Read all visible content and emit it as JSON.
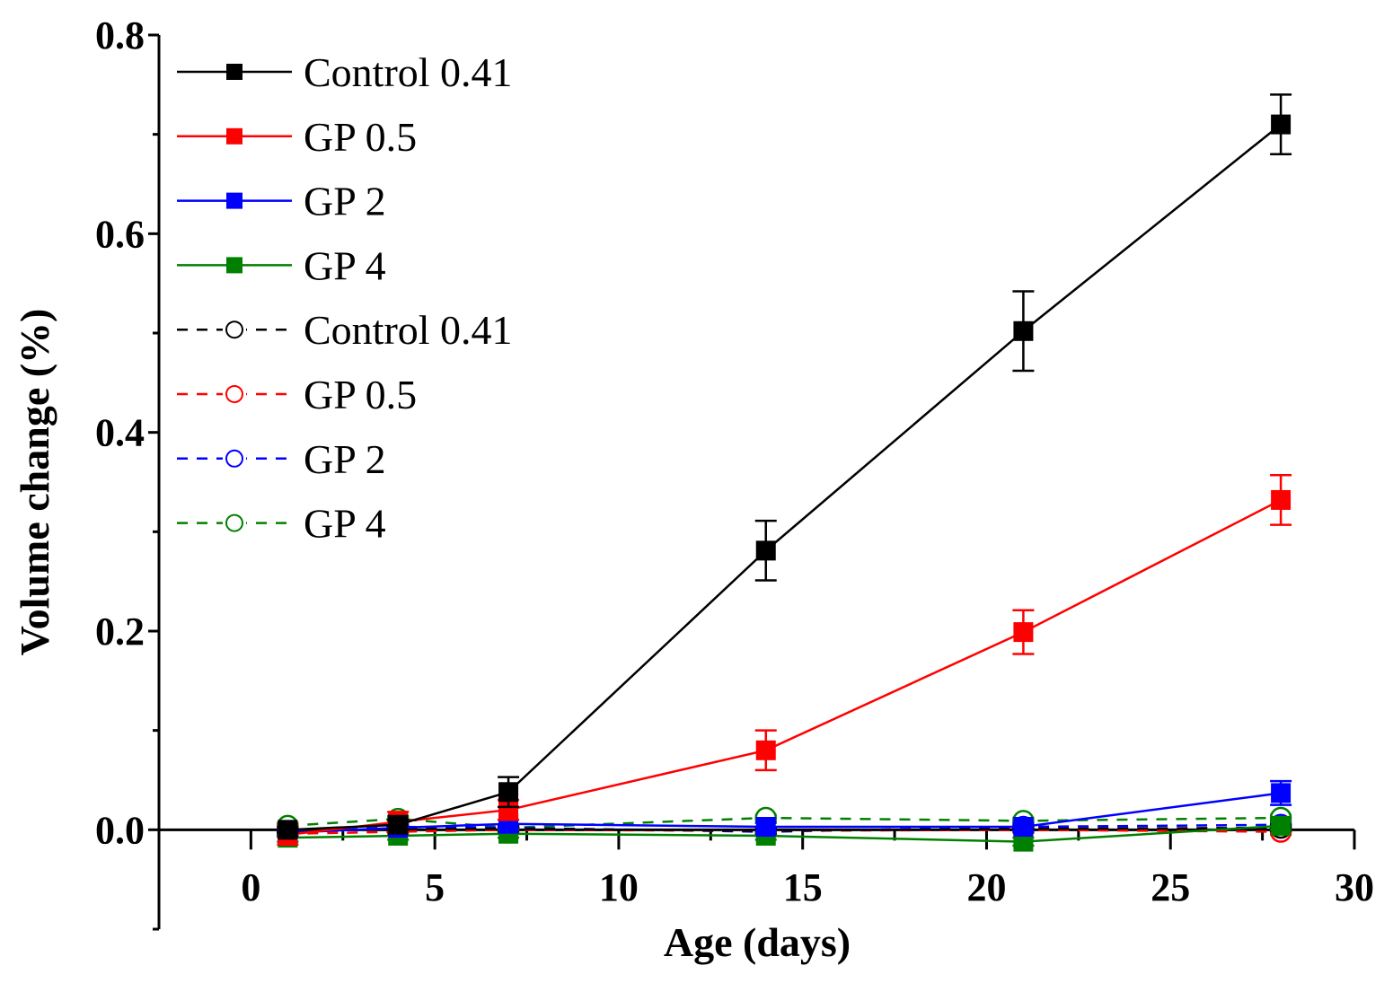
{
  "chart_data": {
    "type": "line",
    "title": "",
    "xlabel": "Age (days)",
    "ylabel": "Volume change (%)",
    "xlim": [
      -2.5,
      30
    ],
    "ylim": [
      -0.1,
      0.8
    ],
    "xticks": [
      "0",
      "5",
      "10",
      "15",
      "20",
      "25",
      "30"
    ],
    "yticks": [
      "0.0",
      "0.2",
      "0.4",
      "0.6",
      "0.8"
    ],
    "legend_position": "top-left",
    "x": [
      1,
      4,
      7,
      14,
      21,
      28
    ],
    "series": [
      {
        "name": "Control 0.41",
        "color": "#000000",
        "style": "solid",
        "marker": "filled-square",
        "values": [
          0.0,
          0.005,
          0.038,
          0.281,
          0.502,
          0.71
        ],
        "errors": [
          0.003,
          0.005,
          0.015,
          0.03,
          0.04,
          0.03
        ]
      },
      {
        "name": "GP 0.5",
        "color": "#ff0000",
        "style": "solid",
        "marker": "filled-square",
        "values": [
          -0.005,
          0.008,
          0.02,
          0.08,
          0.199,
          0.332
        ],
        "errors": [
          0.01,
          0.01,
          0.01,
          0.02,
          0.022,
          0.025
        ]
      },
      {
        "name": "GP 2",
        "color": "#0000ff",
        "style": "solid",
        "marker": "filled-square",
        "values": [
          -0.003,
          0.002,
          0.006,
          0.003,
          0.003,
          0.037
        ],
        "errors": [
          0.004,
          0.004,
          0.004,
          0.004,
          0.004,
          0.012
        ]
      },
      {
        "name": "GP 4",
        "color": "#008000",
        "style": "solid",
        "marker": "filled-square",
        "values": [
          -0.008,
          -0.006,
          -0.004,
          -0.006,
          -0.012,
          0.004
        ],
        "errors": [
          0.004,
          0.004,
          0.004,
          0.004,
          0.004,
          0.004
        ]
      },
      {
        "name": "Control 0.41",
        "color": "#000000",
        "style": "dashed",
        "marker": "open-circle",
        "values": [
          -0.002,
          0.001,
          0.001,
          -0.001,
          0.001,
          0.002
        ],
        "errors": [
          0.003,
          0.003,
          0.003,
          0.003,
          0.003,
          0.003
        ]
      },
      {
        "name": "GP 0.5",
        "color": "#ff0000",
        "style": "dashed",
        "marker": "open-circle",
        "values": [
          -0.004,
          -0.002,
          0.0,
          -0.001,
          0.0,
          -0.002
        ],
        "errors": [
          0.003,
          0.003,
          0.003,
          0.003,
          0.003,
          0.003
        ]
      },
      {
        "name": "GP 2",
        "color": "#0000ff",
        "style": "dashed",
        "marker": "open-circle",
        "values": [
          -0.003,
          0.003,
          0.002,
          -0.002,
          0.003,
          0.005
        ],
        "errors": [
          0.003,
          0.003,
          0.003,
          0.003,
          0.003,
          0.003
        ]
      },
      {
        "name": "GP 4",
        "color": "#008000",
        "style": "dashed",
        "marker": "open-circle",
        "values": [
          0.004,
          0.011,
          0.002,
          0.012,
          0.009,
          0.012
        ],
        "errors": [
          0.003,
          0.003,
          0.003,
          0.003,
          0.003,
          0.003
        ]
      }
    ]
  }
}
